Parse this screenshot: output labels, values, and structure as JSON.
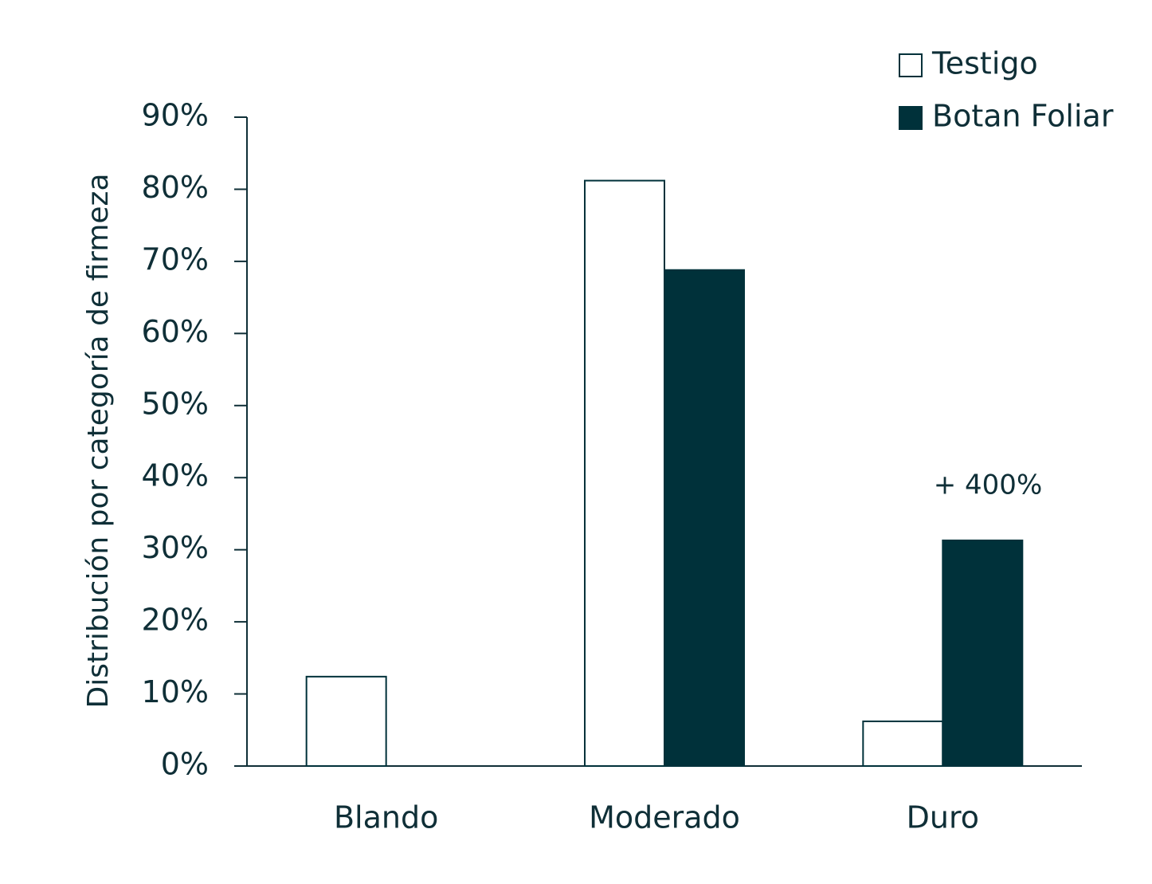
{
  "chart_data": {
    "type": "bar",
    "y_label": "Distribución por categoría de firmeza",
    "categories": [
      "Blando",
      "Moderado",
      "Duro"
    ],
    "series": [
      {
        "name": "Testigo",
        "color": "#ffffff",
        "values": [
          12.4,
          81.2,
          6.2
        ]
      },
      {
        "name": "Botan Foliar",
        "color": "#00313a",
        "values": [
          0,
          68.8,
          31.3
        ]
      }
    ],
    "annotation": "+ 400%",
    "edgecolor": "#00313a",
    "ylim": [
      0,
      90
    ],
    "yticks": [
      {
        "value": 0,
        "label": "0%"
      },
      {
        "value": 10,
        "label": "10%"
      },
      {
        "value": 20,
        "label": "20%"
      },
      {
        "value": 30,
        "label": "30%"
      },
      {
        "value": 40,
        "label": "40%"
      },
      {
        "value": 50,
        "label": "50%"
      },
      {
        "value": 60,
        "label": "60%"
      },
      {
        "value": 70,
        "label": "70%"
      },
      {
        "value": 80,
        "label": "80%"
      },
      {
        "value": 90,
        "label": "90%"
      }
    ],
    "legend": "upper right"
  }
}
